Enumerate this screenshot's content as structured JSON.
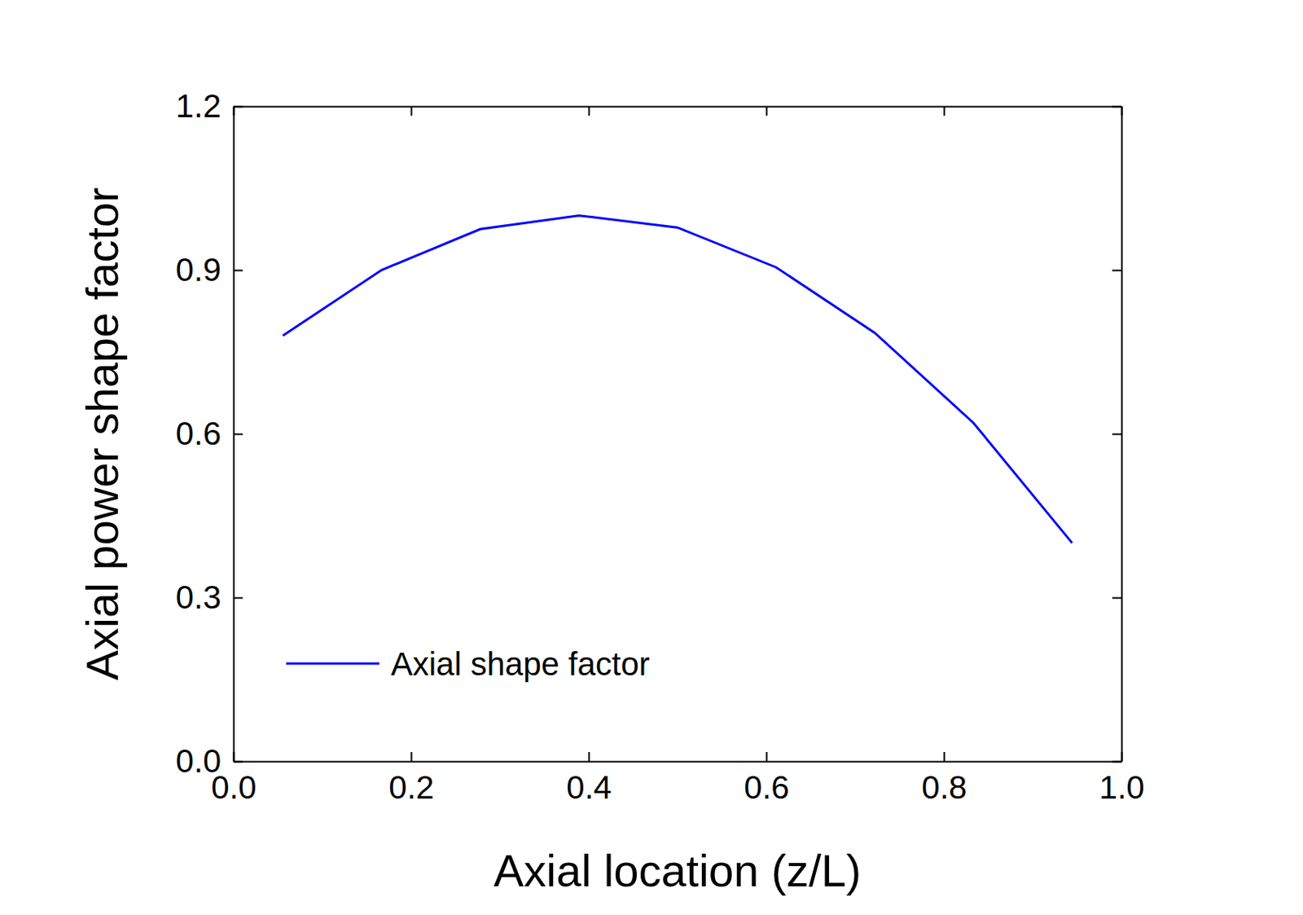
{
  "chart_data": {
    "type": "line",
    "x_label": "Axial location (z/L)",
    "y_label": "Axial power shape factor",
    "x": [
      0.0556,
      0.1667,
      0.2778,
      0.3889,
      0.5,
      0.6111,
      0.7222,
      0.8333,
      0.9444
    ],
    "series": [
      {
        "name": "Axial shape factor",
        "color": "#0000ff",
        "values": [
          0.78,
          0.9,
          0.975,
          1.0,
          0.978,
          0.905,
          0.785,
          0.62,
          0.4
        ]
      }
    ],
    "xlim": [
      0,
      1
    ],
    "xticks": [
      {
        "value": 0,
        "label": "0.0"
      },
      0.2,
      0.4,
      0.6,
      0.8,
      {
        "value": 1,
        "label": "1.0"
      }
    ],
    "ylim": [
      0,
      1.2
    ],
    "yticks": [
      {
        "value": 0,
        "label": "0.0"
      },
      0.3,
      0.6,
      0.9,
      1.2
    ],
    "legend": "lower left",
    "grid": false
  }
}
